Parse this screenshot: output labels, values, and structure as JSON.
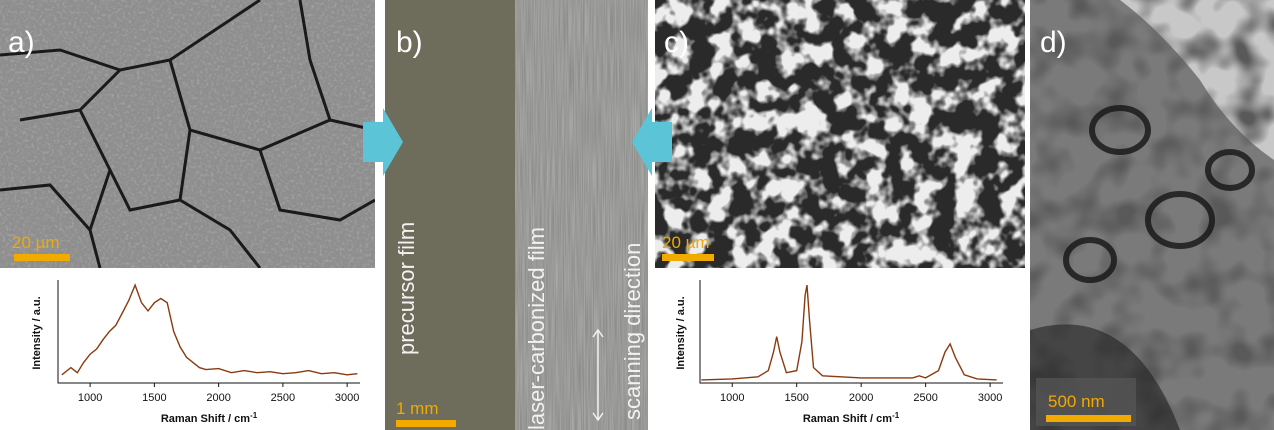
{
  "panels": [
    {
      "label": "a)",
      "scale_bar": "20 µm"
    },
    {
      "label": "b)",
      "scale_bar": "1 mm",
      "texts": [
        "precursor film",
        "laser-carbonized film",
        "scanning direction"
      ]
    },
    {
      "label": "c)",
      "scale_bar": "20 µm"
    },
    {
      "label": "d)",
      "scale_bar": "500 nm"
    }
  ],
  "chart_data": [
    {
      "type": "line",
      "x_label": "Raman Shift / cm",
      "x_label_exponent": "-1",
      "y_label": "Intensity / a.u.",
      "color": "#8b3a0f",
      "xlim": [
        750,
        3100
      ],
      "ylim": [
        0,
        1
      ],
      "xticks": [
        1000,
        1500,
        2000,
        2500,
        3000
      ],
      "x": [
        780,
        850,
        900,
        950,
        1000,
        1050,
        1100,
        1150,
        1200,
        1250,
        1300,
        1350,
        1400,
        1450,
        1500,
        1550,
        1600,
        1650,
        1700,
        1750,
        1800,
        1850,
        1900,
        2000,
        2100,
        2200,
        2300,
        2400,
        2500,
        2600,
        2700,
        2800,
        2900,
        3000,
        3080
      ],
      "values": [
        0.08,
        0.15,
        0.1,
        0.2,
        0.28,
        0.33,
        0.42,
        0.5,
        0.56,
        0.68,
        0.8,
        0.95,
        0.78,
        0.7,
        0.78,
        0.82,
        0.78,
        0.5,
        0.35,
        0.25,
        0.2,
        0.15,
        0.13,
        0.14,
        0.1,
        0.12,
        0.1,
        0.11,
        0.09,
        0.1,
        0.12,
        0.09,
        0.1,
        0.08,
        0.09
      ]
    },
    {
      "type": "line",
      "x_label": "Raman Shift / cm",
      "x_label_exponent": "-1",
      "y_label": "Intensity / a.u.",
      "color": "#8b3a0f",
      "xlim": [
        750,
        3100
      ],
      "ylim": [
        0,
        1
      ],
      "xticks": [
        1000,
        1500,
        2000,
        2500,
        3000
      ],
      "x": [
        760,
        1000,
        1200,
        1280,
        1320,
        1345,
        1370,
        1420,
        1500,
        1540,
        1565,
        1580,
        1600,
        1630,
        1700,
        2000,
        2400,
        2450,
        2500,
        2600,
        2650,
        2690,
        2730,
        2800,
        2900,
        3050
      ],
      "values": [
        0.03,
        0.04,
        0.06,
        0.12,
        0.3,
        0.45,
        0.3,
        0.1,
        0.12,
        0.4,
        0.85,
        0.95,
        0.6,
        0.15,
        0.07,
        0.05,
        0.05,
        0.07,
        0.05,
        0.12,
        0.3,
        0.38,
        0.25,
        0.08,
        0.04,
        0.03
      ]
    }
  ]
}
